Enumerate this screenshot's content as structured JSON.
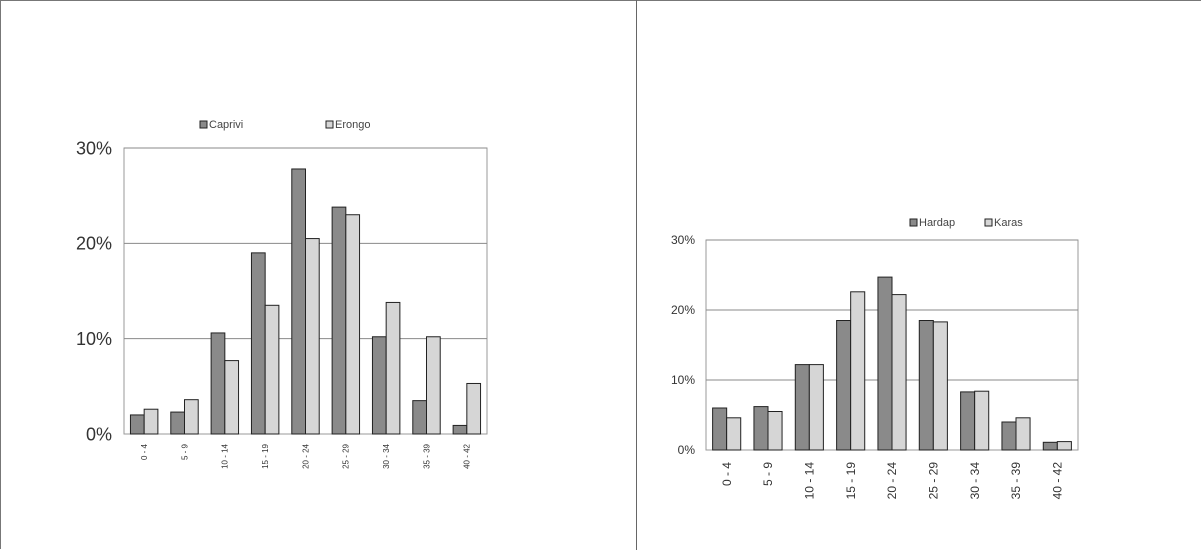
{
  "colors": {
    "series_dark": "#8a8a8a",
    "series_light": "#d6d6d6",
    "grid": "#8a8a8a",
    "plot_border": "#999999"
  },
  "chart_data": [
    {
      "type": "bar",
      "categories": [
        "0 - 4",
        "5 - 9",
        "10 - 14",
        "15 - 19",
        "20 - 24",
        "25 - 29",
        "30 - 34",
        "35 - 39",
        "40 - 42"
      ],
      "series": [
        {
          "name": "Caprivi",
          "values": [
            2.0,
            2.3,
            10.6,
            19.0,
            27.8,
            23.8,
            10.2,
            3.5,
            0.9
          ]
        },
        {
          "name": "Erongo",
          "values": [
            2.6,
            3.6,
            7.7,
            13.5,
            20.5,
            23.0,
            13.8,
            10.2,
            5.3
          ]
        }
      ],
      "y_ticks": [
        "0%",
        "10%",
        "20%",
        "30%"
      ],
      "ylim": [
        0,
        30
      ],
      "grid": true,
      "legend": "top"
    },
    {
      "type": "bar",
      "categories": [
        "0 - 4",
        "5 - 9",
        "10 - 14",
        "15 - 19",
        "20 - 24",
        "25 - 29",
        "30 - 34",
        "35 - 39",
        "40 - 42"
      ],
      "series": [
        {
          "name": "Hardap",
          "values": [
            6.0,
            6.2,
            12.2,
            18.5,
            24.7,
            18.5,
            8.3,
            4.0,
            1.1
          ]
        },
        {
          "name": "Karas",
          "values": [
            4.6,
            5.5,
            12.2,
            22.6,
            22.2,
            18.3,
            8.4,
            4.6,
            1.2
          ]
        }
      ],
      "y_ticks": [
        "0%",
        "10%",
        "20%",
        "30%"
      ],
      "ylim": [
        0,
        30
      ],
      "grid": true,
      "legend": "top"
    }
  ]
}
